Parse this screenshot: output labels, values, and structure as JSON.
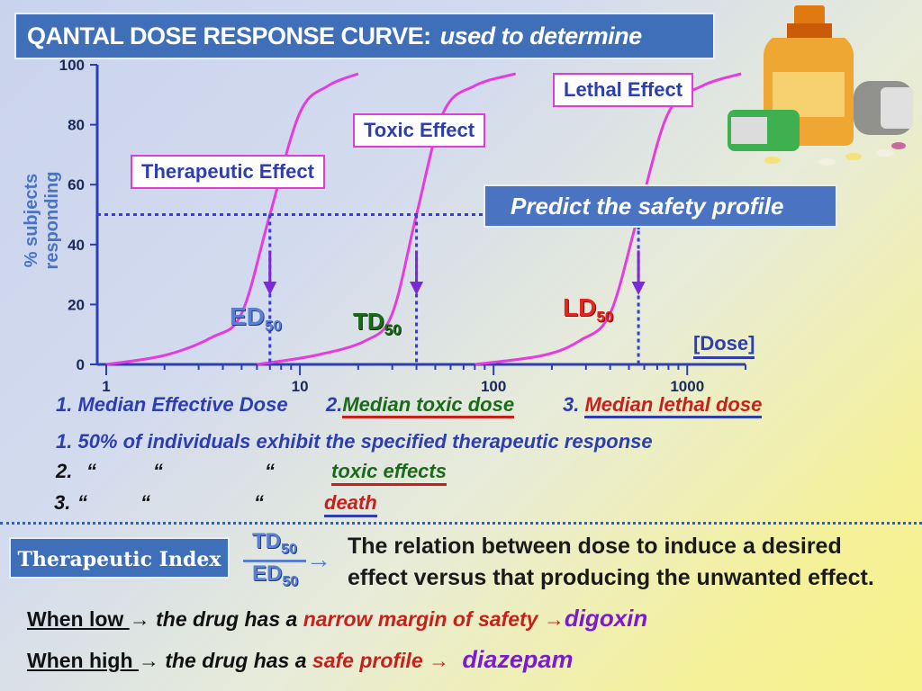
{
  "title": {
    "main": "QANTAL DOSE RESPONSE CURVE:",
    "sub": "used to determine"
  },
  "chart_data": {
    "type": "line",
    "ylabel": "% subjects responding",
    "xlabel": "[Dose]",
    "x_scale": "log",
    "xlim": [
      1,
      2000
    ],
    "ylim": [
      0,
      100
    ],
    "x_ticks": [
      "1",
      "10",
      "100",
      "1000"
    ],
    "y_ticks": [
      "0",
      "20",
      "40",
      "60",
      "80",
      "100"
    ],
    "grid": false,
    "series": [
      {
        "name": "Therapeutic Effect",
        "color": "#e63be0",
        "x": [
          1,
          2,
          3.5,
          5,
          7,
          10,
          14,
          20
        ],
        "y": [
          0,
          3,
          9,
          17,
          50,
          84,
          93,
          97
        ]
      },
      {
        "name": "Toxic Effect",
        "color": "#e63be0",
        "x": [
          6,
          12,
          22,
          30,
          40,
          55,
          80,
          130
        ],
        "y": [
          0,
          3,
          8,
          17,
          50,
          84,
          93,
          97
        ]
      },
      {
        "name": "Lethal Effect",
        "color": "#e63be0",
        "x": [
          80,
          180,
          280,
          400,
          560,
          800,
          1200,
          1900
        ],
        "y": [
          0,
          3,
          8,
          17,
          50,
          84,
          93,
          97
        ]
      }
    ],
    "markers": [
      {
        "name": "ED",
        "sub": "50",
        "x": 7
      },
      {
        "name": "TD",
        "sub": "50",
        "x": 40
      },
      {
        "name": "LD",
        "sub": "50",
        "x": 560
      }
    ],
    "reference_y": 50
  },
  "callouts": {
    "therapeutic": "Therapeutic Effect",
    "toxic": "Toxic Effect",
    "lethal": "Lethal Effect",
    "predict": "Predict the safety profile"
  },
  "definitions": {
    "d1": "1. Median Effective Dose",
    "d2_num": "2.",
    "d2": "Median toxic dose",
    "d3_num": "3.",
    "d3": "Median lethal dose"
  },
  "explain": {
    "line1": "1. 50% of individuals exhibit the specified  therapeutic response",
    "line2_prefix": "2.",
    "line3_prefix": "3.",
    "quote": "“",
    "line2_effect": "toxic effects",
    "line3_effect": "death"
  },
  "therapeutic_index": {
    "label": "Therapeutic Index",
    "numerator": "TD",
    "denominator": "ED",
    "sub": "50",
    "arrow": "→",
    "description_1": "The relation between dose to induce a desired",
    "description_2": "effect versus  that producing the unwanted effect."
  },
  "rules": {
    "low_label": "When low ",
    "low_text": "the  drug has a",
    "low_highlight": "narrow margin of safety",
    "low_drug": "digoxin",
    "high_label": "When high ",
    "high_text": "the  drug has a",
    "high_highlight": "safe profile",
    "high_drug": "diazepam",
    "arrow": "→"
  },
  "colors": {
    "accent": "#3f6fb8",
    "curve": "#e63be0",
    "dotted": "#3a3ad8",
    "lethal": "#e0281e",
    "toxic": "#1a6a1a",
    "highlight_red": "#c8201a",
    "drug_purple": "#7a1ad8"
  }
}
